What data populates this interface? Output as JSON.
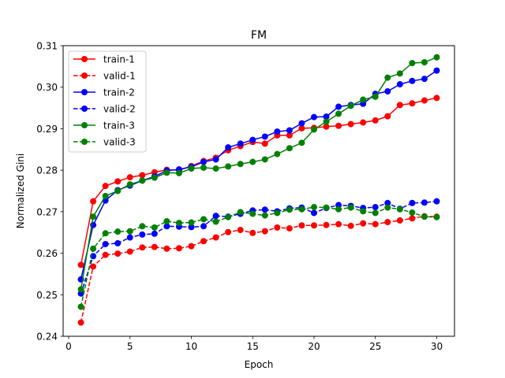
{
  "chart_data": {
    "type": "line",
    "title": "FM",
    "xlabel": "Epoch",
    "ylabel": "Normalized Gini",
    "xlim": [
      -0.45,
      31.45
    ],
    "ylim": [
      0.24,
      0.31
    ],
    "xticks": [
      0,
      5,
      10,
      15,
      20,
      25,
      30
    ],
    "yticks": [
      0.24,
      0.25,
      0.26,
      0.27,
      0.28,
      0.29,
      0.3,
      0.31
    ],
    "xtick_labels": [
      "0",
      "5",
      "10",
      "15",
      "20",
      "25",
      "30"
    ],
    "ytick_labels": [
      "0.24",
      "0.25",
      "0.26",
      "0.27",
      "0.28",
      "0.29",
      "0.30",
      "0.31"
    ],
    "grid": false,
    "legend_position": "upper-left",
    "x": [
      1,
      2,
      3,
      4,
      5,
      6,
      7,
      8,
      9,
      10,
      11,
      12,
      13,
      14,
      15,
      16,
      17,
      18,
      19,
      20,
      21,
      22,
      23,
      24,
      25,
      26,
      27,
      28,
      29,
      30
    ],
    "series": [
      {
        "name": "train-1",
        "color": "#ff0000",
        "dash": "solid",
        "values": [
          0.2572,
          0.2725,
          0.2762,
          0.2773,
          0.2783,
          0.2788,
          0.2795,
          0.2801,
          0.28,
          0.281,
          0.2822,
          0.283,
          0.2848,
          0.2858,
          0.2868,
          0.2864,
          0.2884,
          0.2884,
          0.2901,
          0.2902,
          0.2905,
          0.2907,
          0.2911,
          0.2915,
          0.292,
          0.293,
          0.2957,
          0.2961,
          0.2968,
          0.2974
        ]
      },
      {
        "name": "valid-1",
        "color": "#ff0000",
        "dash": "dashed",
        "values": [
          0.2433,
          0.2568,
          0.2596,
          0.2599,
          0.2604,
          0.2614,
          0.2615,
          0.2611,
          0.2612,
          0.2617,
          0.2629,
          0.2638,
          0.2651,
          0.2656,
          0.2649,
          0.2653,
          0.2662,
          0.266,
          0.2667,
          0.2667,
          0.2668,
          0.267,
          0.2666,
          0.2672,
          0.267,
          0.2675,
          0.2679,
          0.2684,
          0.2689,
          0.2688
        ]
      },
      {
        "name": "train-2",
        "color": "#0000ff",
        "dash": "solid",
        "values": [
          0.2537,
          0.2668,
          0.2727,
          0.2752,
          0.2763,
          0.2775,
          0.2785,
          0.2799,
          0.2802,
          0.2808,
          0.282,
          0.2826,
          0.2855,
          0.2864,
          0.2873,
          0.2881,
          0.2893,
          0.2896,
          0.2913,
          0.2928,
          0.2929,
          0.2953,
          0.2957,
          0.296,
          0.2984,
          0.299,
          0.3007,
          0.3015,
          0.302,
          0.304
        ]
      },
      {
        "name": "valid-2",
        "color": "#0000ff",
        "dash": "dashed",
        "values": [
          0.2503,
          0.2593,
          0.2622,
          0.2624,
          0.2638,
          0.2645,
          0.2647,
          0.2665,
          0.2664,
          0.2663,
          0.2665,
          0.269,
          0.2688,
          0.2695,
          0.2703,
          0.2705,
          0.2701,
          0.2708,
          0.271,
          0.2697,
          0.2709,
          0.2716,
          0.2714,
          0.2709,
          0.2711,
          0.2721,
          0.2707,
          0.2721,
          0.2722,
          0.2725
        ]
      },
      {
        "name": "train-3",
        "color": "#008000",
        "dash": "solid",
        "values": [
          0.2513,
          0.2688,
          0.2738,
          0.275,
          0.2766,
          0.2775,
          0.2782,
          0.2794,
          0.2793,
          0.2804,
          0.2806,
          0.2804,
          0.2809,
          0.2815,
          0.282,
          0.2826,
          0.2839,
          0.2853,
          0.2866,
          0.2898,
          0.2917,
          0.2936,
          0.2955,
          0.297,
          0.2977,
          0.3023,
          0.3033,
          0.3058,
          0.306,
          0.3072
        ]
      },
      {
        "name": "valid-3",
        "color": "#008000",
        "dash": "dashed",
        "values": [
          0.2471,
          0.2611,
          0.2648,
          0.2652,
          0.2653,
          0.2665,
          0.2662,
          0.2677,
          0.2673,
          0.2674,
          0.2682,
          0.2676,
          0.2687,
          0.2699,
          0.2695,
          0.2691,
          0.2697,
          0.2705,
          0.2706,
          0.2711,
          0.271,
          0.2706,
          0.271,
          0.2701,
          0.2697,
          0.271,
          0.2706,
          0.2698,
          0.2688,
          0.2687
        ]
      }
    ]
  }
}
